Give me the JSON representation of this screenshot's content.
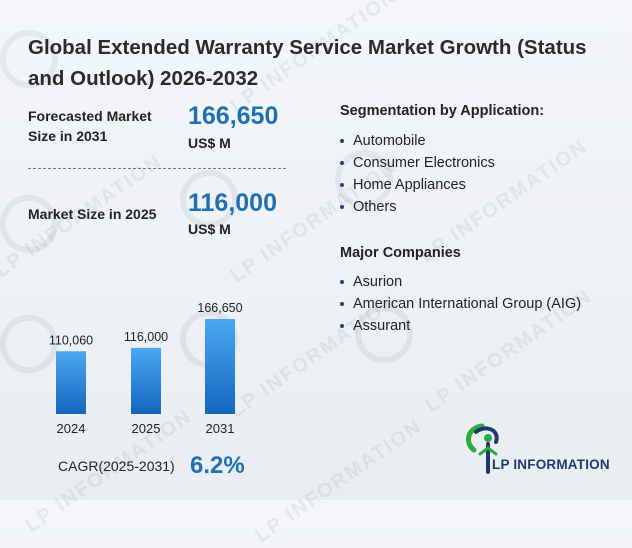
{
  "title": "Global Extended Warranty Service Market Growth (Status and Outlook) 2026-2032",
  "metrics": {
    "forecast": {
      "label": "Forecasted Market Size in 2031",
      "value": "166,650",
      "unit": "US$ M"
    },
    "current": {
      "label": "Market Size in 2025",
      "value": "116,000",
      "unit": "US$ M"
    }
  },
  "segmentation": {
    "heading": "Segmentation by Application:",
    "items": [
      "Automobile",
      "Consumer Electronics",
      "Home Appliances",
      "Others"
    ]
  },
  "companies": {
    "heading": "Major Companies",
    "items": [
      "Asurion",
      "American International Group (AIG)",
      "Assurant"
    ]
  },
  "cagr": {
    "label": "CAGR(2025-2031)",
    "value": "6.2%"
  },
  "brand": {
    "name": "LP INFORMATION",
    "watermark": "LP INFORMATION"
  },
  "colors": {
    "accent": "#1f6fb3",
    "bar_top": "#4aa8f0",
    "bar_bottom": "#1565c0",
    "logo_green": "#2eaa3a",
    "logo_navy": "#1d3a6e"
  },
  "chart_data": {
    "type": "bar",
    "categories": [
      "2024",
      "2025",
      "2031"
    ],
    "values": [
      110060,
      116000,
      166650
    ],
    "value_labels": [
      "110,060",
      "116,000",
      "166,650"
    ],
    "title": "",
    "xlabel": "",
    "ylabel": "",
    "ylim": [
      0,
      166650
    ],
    "grid": false,
    "legend": "none"
  }
}
